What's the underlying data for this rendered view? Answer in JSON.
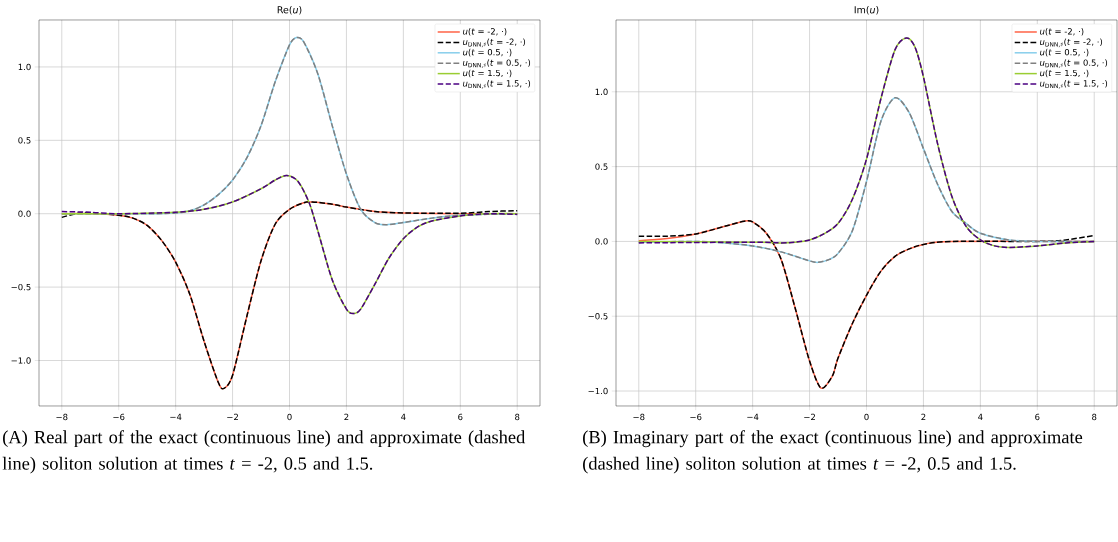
{
  "chart_data": [
    {
      "type": "line",
      "title": "Re(*u*)",
      "xlim": [
        -8.8,
        8.8
      ],
      "ylim": [
        -1.31,
        1.32
      ],
      "xticks": [
        {
          "value": -8,
          "label": "−8"
        },
        {
          "value": -6,
          "label": "−6"
        },
        {
          "value": -4,
          "label": "−4"
        },
        {
          "value": -2,
          "label": "−2"
        },
        0,
        2,
        4,
        6,
        8
      ],
      "yticks": [
        {
          "value": -1.0,
          "label": "−1.0"
        },
        {
          "value": -0.5,
          "label": "−0.5"
        },
        {
          "value": 0.0,
          "label": "0.0"
        },
        0.5,
        {
          "value": 1.0,
          "label": "1.0"
        }
      ],
      "grid": true,
      "legend": "top right",
      "annotations": [
        "(A) Real part of the exact (continuous line) and approximate (dashed line) soliton solution at times *t* = -2, 0.5 and 1.5."
      ],
      "series": [
        {
          "name": "*u*(*t* = -2, ·)",
          "color": "#ff6347",
          "line_style": "solid",
          "x": [
            -8,
            -7,
            -6,
            -5.5,
            -5,
            -4.5,
            -4,
            -3.5,
            -3,
            -2.5,
            -2.3,
            -2,
            -1.5,
            -1,
            -0.5,
            0,
            0.5,
            0.8,
            1.5,
            2,
            3,
            4,
            6,
            8
          ],
          "values": [
            0,
            0,
            -0.01,
            -0.03,
            -0.08,
            -0.18,
            -0.33,
            -0.55,
            -0.87,
            -1.15,
            -1.19,
            -1.1,
            -0.7,
            -0.32,
            -0.07,
            0.03,
            0.075,
            0.08,
            0.065,
            0.045,
            0.015,
            0.005,
            0,
            0
          ]
        },
        {
          "name": "*u*$_{DNN,♯}$(*t* = -2, ·)",
          "color": "#000000",
          "line_style": "dashed",
          "x": [
            -8,
            -7.5,
            -7,
            -6,
            -5.5,
            -5,
            -4.5,
            -4,
            -3.5,
            -3,
            -2.5,
            -2.3,
            -2,
            -1.5,
            -1,
            -0.5,
            0,
            0.5,
            0.8,
            1.5,
            2,
            3,
            4,
            6,
            7,
            8
          ],
          "values": [
            -0.025,
            0,
            0.005,
            -0.01,
            -0.03,
            -0.08,
            -0.18,
            -0.33,
            -0.55,
            -0.87,
            -1.15,
            -1.19,
            -1.1,
            -0.7,
            -0.32,
            -0.07,
            0.03,
            0.075,
            0.08,
            0.065,
            0.045,
            0.015,
            0.005,
            0.003,
            0.015,
            0.02
          ]
        },
        {
          "name": "*u*(*t* = 0.5, ·)",
          "color": "#87ceeb",
          "line_style": "solid",
          "x": [
            -8,
            -5,
            -4,
            -3.5,
            -3,
            -2.5,
            -2,
            -1.5,
            -1,
            -0.5,
            0,
            0.25,
            0.5,
            1,
            1.5,
            2,
            2.5,
            3,
            3.4,
            4,
            5,
            6,
            8
          ],
          "values": [
            0,
            0,
            0.005,
            0.02,
            0.06,
            0.13,
            0.23,
            0.38,
            0.6,
            0.9,
            1.15,
            1.2,
            1.17,
            0.95,
            0.6,
            0.27,
            0.03,
            -0.06,
            -0.075,
            -0.06,
            -0.03,
            -0.01,
            0
          ]
        },
        {
          "name": "*u*$_{DNN,♯}$(*t* = 0.5, ·)",
          "color": "#808080",
          "line_style": "dashed",
          "x": [
            -8,
            -5,
            -4,
            -3.5,
            -3,
            -2.5,
            -2,
            -1.5,
            -1,
            -0.5,
            0,
            0.25,
            0.5,
            1,
            1.5,
            2,
            2.5,
            3,
            3.4,
            4,
            5,
            6,
            8
          ],
          "values": [
            0,
            0,
            0.005,
            0.02,
            0.06,
            0.13,
            0.23,
            0.38,
            0.6,
            0.9,
            1.15,
            1.2,
            1.17,
            0.95,
            0.6,
            0.27,
            0.03,
            -0.06,
            -0.075,
            -0.06,
            -0.03,
            -0.01,
            0
          ]
        },
        {
          "name": "*u*(*t* = 1.5, ·)",
          "color": "#9acd32",
          "line_style": "solid",
          "x": [
            -8,
            -6,
            -4,
            -3,
            -2,
            -1,
            -0.5,
            -0.1,
            0.3,
            0.7,
            1,
            1.5,
            2,
            2.25,
            2.5,
            3,
            3.5,
            4,
            4.5,
            5,
            6,
            7,
            8
          ],
          "values": [
            0,
            0,
            0.01,
            0.03,
            0.08,
            0.17,
            0.23,
            0.26,
            0.22,
            0.07,
            -0.12,
            -0.45,
            -0.65,
            -0.68,
            -0.65,
            -0.48,
            -0.3,
            -0.17,
            -0.09,
            -0.05,
            -0.015,
            0,
            0
          ]
        },
        {
          "name": "*u*$_{DNN,♯}$(*t* = 1.5, ·)",
          "color": "#4b0082",
          "line_style": "dashed",
          "x": [
            -8,
            -7,
            -6,
            -4,
            -3,
            -2,
            -1,
            -0.5,
            -0.1,
            0.3,
            0.7,
            1,
            1.5,
            2,
            2.25,
            2.5,
            3,
            3.5,
            4,
            4.5,
            5,
            6,
            7,
            8
          ],
          "values": [
            0.015,
            0.01,
            0,
            0.01,
            0.03,
            0.08,
            0.17,
            0.23,
            0.26,
            0.22,
            0.07,
            -0.12,
            -0.45,
            -0.65,
            -0.68,
            -0.65,
            -0.48,
            -0.3,
            -0.17,
            -0.09,
            -0.05,
            -0.015,
            0,
            -0.005
          ]
        }
      ]
    },
    {
      "type": "line",
      "title": "Im(*u*)",
      "xlim": [
        -8.8,
        8.8
      ],
      "ylim": [
        -1.1,
        1.48
      ],
      "xticks": [
        {
          "value": -8,
          "label": "−8"
        },
        {
          "value": -6,
          "label": "−6"
        },
        {
          "value": -4,
          "label": "−4"
        },
        {
          "value": -2,
          "label": "−2"
        },
        0,
        2,
        4,
        6,
        8
      ],
      "yticks": [
        {
          "value": -1.0,
          "label": "−1.0"
        },
        {
          "value": -0.5,
          "label": "−0.5"
        },
        {
          "value": 0.0,
          "label": "0.0"
        },
        0.5,
        {
          "value": 1.0,
          "label": "1.0"
        }
      ],
      "grid": true,
      "legend": "top right",
      "annotations": [
        "(B) Imaginary part of the exact (continuous line) and approximate (dashed line) soliton solution at times *t* = -2, 0.5 and 1.5."
      ],
      "series": [
        {
          "name": "*u*(*t* = -2, ·)",
          "color": "#ff6347",
          "line_style": "solid",
          "x": [
            -8,
            -7,
            -6,
            -5,
            -4.3,
            -4,
            -3.5,
            -3,
            -2.5,
            -2,
            -1.6,
            -1.2,
            -1,
            -0.5,
            0,
            0.5,
            1,
            1.5,
            2,
            3,
            8
          ],
          "values": [
            0.005,
            0.02,
            0.05,
            0.1,
            0.135,
            0.13,
            0.05,
            -0.12,
            -0.45,
            -0.8,
            -0.98,
            -0.9,
            -0.78,
            -0.55,
            -0.36,
            -0.2,
            -0.1,
            -0.05,
            -0.02,
            0,
            0
          ]
        },
        {
          "name": "*u*$_{DNN,♯}$(*t* = -2, ·)",
          "color": "#000000",
          "line_style": "dashed",
          "x": [
            -8,
            -7,
            -6,
            -5,
            -4.3,
            -4,
            -3.5,
            -3,
            -2.5,
            -2,
            -1.6,
            -1.2,
            -1,
            -0.5,
            0,
            0.5,
            1,
            1.5,
            2,
            3,
            6,
            7,
            8
          ],
          "values": [
            0.035,
            0.035,
            0.05,
            0.1,
            0.135,
            0.13,
            0.05,
            -0.12,
            -0.45,
            -0.8,
            -0.98,
            -0.9,
            -0.78,
            -0.55,
            -0.36,
            -0.2,
            -0.1,
            -0.05,
            -0.02,
            0,
            0,
            0.01,
            0.04
          ]
        },
        {
          "name": "*u*(*t* = 0.5, ·)",
          "color": "#87ceeb",
          "line_style": "solid",
          "x": [
            -8,
            -6,
            -5,
            -4,
            -3,
            -2,
            -1.7,
            -1.3,
            -1,
            -0.5,
            0,
            0.5,
            1,
            1.5,
            2,
            2.5,
            3,
            3.5,
            4,
            5,
            6,
            8
          ],
          "values": [
            -0.005,
            0,
            -0.01,
            -0.03,
            -0.07,
            -0.13,
            -0.14,
            -0.12,
            -0.08,
            0.07,
            0.4,
            0.8,
            0.96,
            0.86,
            0.62,
            0.38,
            0.2,
            0.12,
            0.055,
            0.01,
            0,
            0
          ]
        },
        {
          "name": "*u*$_{DNN,♯}$(*t* = 0.5, ·)",
          "color": "#808080",
          "line_style": "dashed",
          "x": [
            -8,
            -6,
            -5,
            -4,
            -3,
            -2,
            -1.7,
            -1.3,
            -1,
            -0.5,
            0,
            0.5,
            1,
            1.5,
            2,
            2.5,
            3,
            3.5,
            4,
            5,
            6,
            8
          ],
          "values": [
            -0.005,
            0,
            -0.01,
            -0.03,
            -0.07,
            -0.13,
            -0.14,
            -0.12,
            -0.08,
            0.07,
            0.4,
            0.8,
            0.96,
            0.86,
            0.62,
            0.38,
            0.2,
            0.12,
            0.055,
            0.01,
            0,
            0
          ]
        },
        {
          "name": "*u*(*t* = 1.5, ·)",
          "color": "#9acd32",
          "line_style": "solid",
          "x": [
            -8,
            -4,
            -3,
            -2.5,
            -2,
            -1.5,
            -1,
            -0.5,
            0,
            0.5,
            1,
            1.4,
            1.7,
            2,
            2.5,
            3,
            3.5,
            4,
            4.5,
            5,
            6,
            7,
            8
          ],
          "values": [
            0,
            -0.005,
            -0.01,
            -0.005,
            0.01,
            0.05,
            0.12,
            0.28,
            0.55,
            0.95,
            1.28,
            1.36,
            1.3,
            1.1,
            0.65,
            0.3,
            0.1,
            0.01,
            -0.03,
            -0.04,
            -0.03,
            -0.01,
            0
          ]
        },
        {
          "name": "*u*$_{DNN,♯}$(*t* = 1.5, ·)",
          "color": "#4b0082",
          "line_style": "dashed",
          "x": [
            -8,
            -4,
            -3,
            -2.5,
            -2,
            -1.5,
            -1,
            -0.5,
            0,
            0.5,
            1,
            1.4,
            1.7,
            2,
            2.5,
            3,
            3.5,
            4,
            4.5,
            5,
            6,
            7,
            8
          ],
          "values": [
            -0.01,
            -0.005,
            -0.01,
            -0.005,
            0.01,
            0.05,
            0.12,
            0.28,
            0.55,
            0.95,
            1.28,
            1.36,
            1.3,
            1.1,
            0.65,
            0.3,
            0.1,
            0.01,
            -0.03,
            -0.04,
            -0.03,
            -0.01,
            0
          ]
        }
      ]
    }
  ]
}
